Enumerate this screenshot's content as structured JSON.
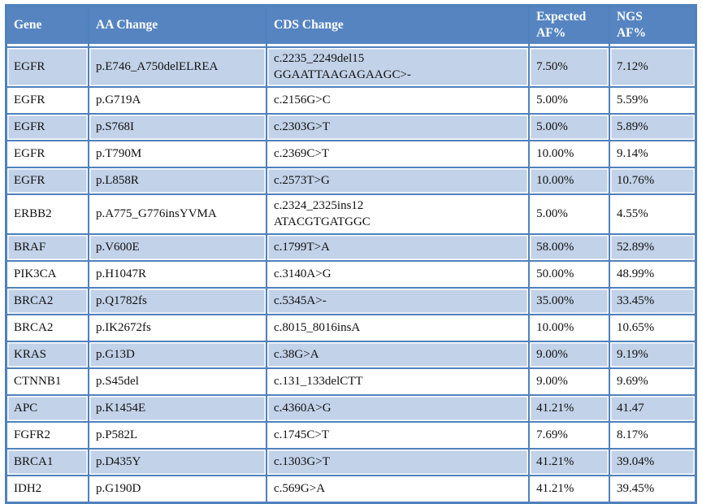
{
  "colors": {
    "header_bg": "#5584c1",
    "grid_border": "#4f81bd",
    "band_row_bg": "#c2d2e8",
    "header_text": "#ffffff",
    "body_text": "#111111"
  },
  "table": {
    "columns": [
      {
        "label": "Gene"
      },
      {
        "label": "AA Change"
      },
      {
        "label": "CDS Change"
      },
      {
        "label": "Expected\nAF%"
      },
      {
        "label": "NGS\nAF%"
      }
    ],
    "rows": [
      {
        "gene": "EGFR",
        "aa": "p.E746_A750delELREA",
        "cds": "c.2235_2249del15\nGGAATTAAGAGAAGC>-",
        "expected": "7.50%",
        "ngs": "7.12%"
      },
      {
        "gene": "EGFR",
        "aa": "p.G719A",
        "cds": "c.2156G>C",
        "expected": "5.00%",
        "ngs": "5.59%"
      },
      {
        "gene": "EGFR",
        "aa": "p.S768I",
        "cds": "c.2303G>T",
        "expected": "5.00%",
        "ngs": "5.89%"
      },
      {
        "gene": "EGFR",
        "aa": "p.T790M",
        "cds": "c.2369C>T",
        "expected": "10.00%",
        "ngs": "9.14%"
      },
      {
        "gene": "EGFR",
        "aa": "p.L858R",
        "cds": "c.2573T>G",
        "expected": "10.00%",
        "ngs": "10.76%"
      },
      {
        "gene": "ERBB2",
        "aa": "p.A775_G776insYVMA",
        "cds": "c.2324_2325ins12\nATACGTGATGGC",
        "expected": "5.00%",
        "ngs": "4.55%"
      },
      {
        "gene": "BRAF",
        "aa": "p.V600E",
        "cds": "c.1799T>A",
        "expected": "58.00%",
        "ngs": "52.89%"
      },
      {
        "gene": "PIK3CA",
        "aa": "p.H1047R",
        "cds": "c.3140A>G",
        "expected": "50.00%",
        "ngs": "48.99%"
      },
      {
        "gene": "BRCA2",
        "aa": "p.Q1782fs",
        "cds": "c.5345A>-",
        "expected": "35.00%",
        "ngs": "33.45%"
      },
      {
        "gene": "BRCA2",
        "aa": "p.IK2672fs",
        "cds": "c.8015_8016insA",
        "expected": "10.00%",
        "ngs": "10.65%"
      },
      {
        "gene": "KRAS",
        "aa": "p.G13D",
        "cds": "c.38G>A",
        "expected": "9.00%",
        "ngs": "9.19%"
      },
      {
        "gene": "CTNNB1",
        "aa": "p.S45del",
        "cds": "c.131_133delCTT",
        "expected": "9.00%",
        "ngs": "9.69%"
      },
      {
        "gene": "APC",
        "aa": "p.K1454E",
        "cds": "c.4360A>G",
        "expected": "41.21%",
        "ngs": "41.47"
      },
      {
        "gene": "FGFR2",
        "aa": "p.P582L",
        "cds": "c.1745C>T",
        "expected": "7.69%",
        "ngs": "8.17%"
      },
      {
        "gene": "BRCA1",
        "aa": "p.D435Y",
        "cds": "c.1303G>T",
        "expected": "41.21%",
        "ngs": "39.04%"
      },
      {
        "gene": "IDH2",
        "aa": "p.G190D",
        "cds": "c.569G>A",
        "expected": "41.21%",
        "ngs": "39.45%"
      }
    ]
  }
}
